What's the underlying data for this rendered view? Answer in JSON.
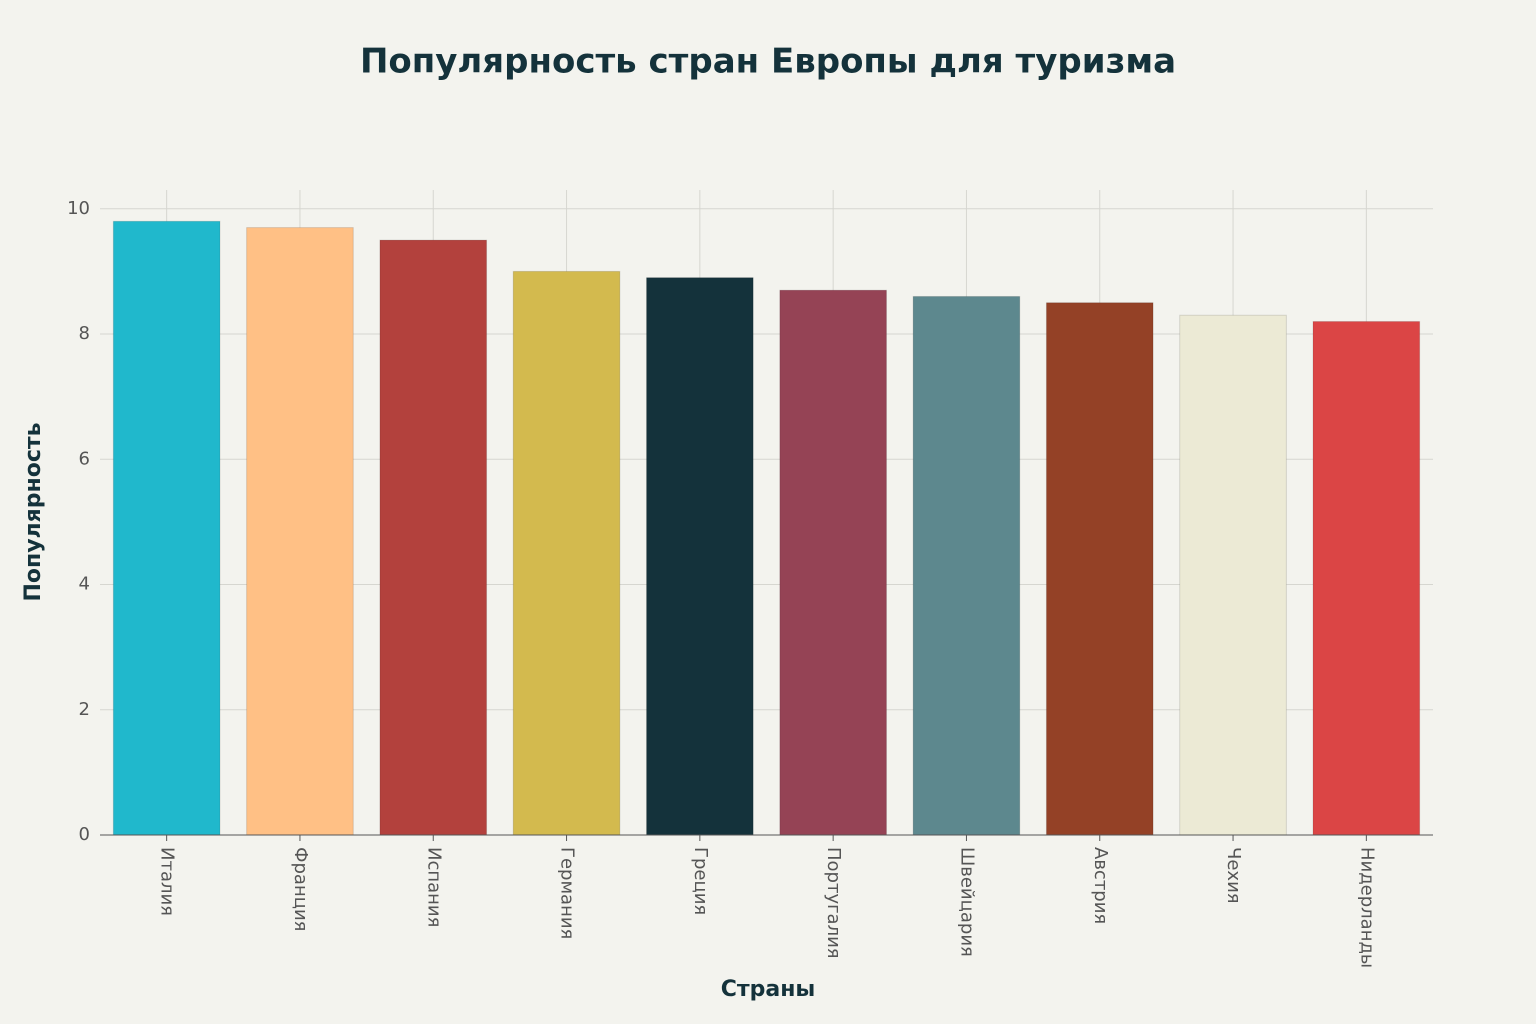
{
  "chart_data": {
    "type": "bar",
    "title": "Популярность стран Европы для туризма",
    "x_label": "Страны",
    "y_label": "Популярность",
    "categories": [
      "Италия",
      "Франция",
      "Испания",
      "Германия",
      "Греция",
      "Португалия",
      "Швейцария",
      "Австрия",
      "Чехия",
      "Нидерланды"
    ],
    "values": [
      9.8,
      9.7,
      9.5,
      9.0,
      8.9,
      8.7,
      8.6,
      8.5,
      8.3,
      8.2
    ],
    "colors": [
      "#20b8cc",
      "#ffc085",
      "#b3413d",
      "#d3ba4e",
      "#14323b",
      "#954355",
      "#5d888e",
      "#944126",
      "#ecead5",
      "#db4545"
    ],
    "ylim": [
      0,
      10.3
    ],
    "yticks": [
      0,
      2,
      4,
      6,
      8,
      10
    ],
    "grid": true
  }
}
